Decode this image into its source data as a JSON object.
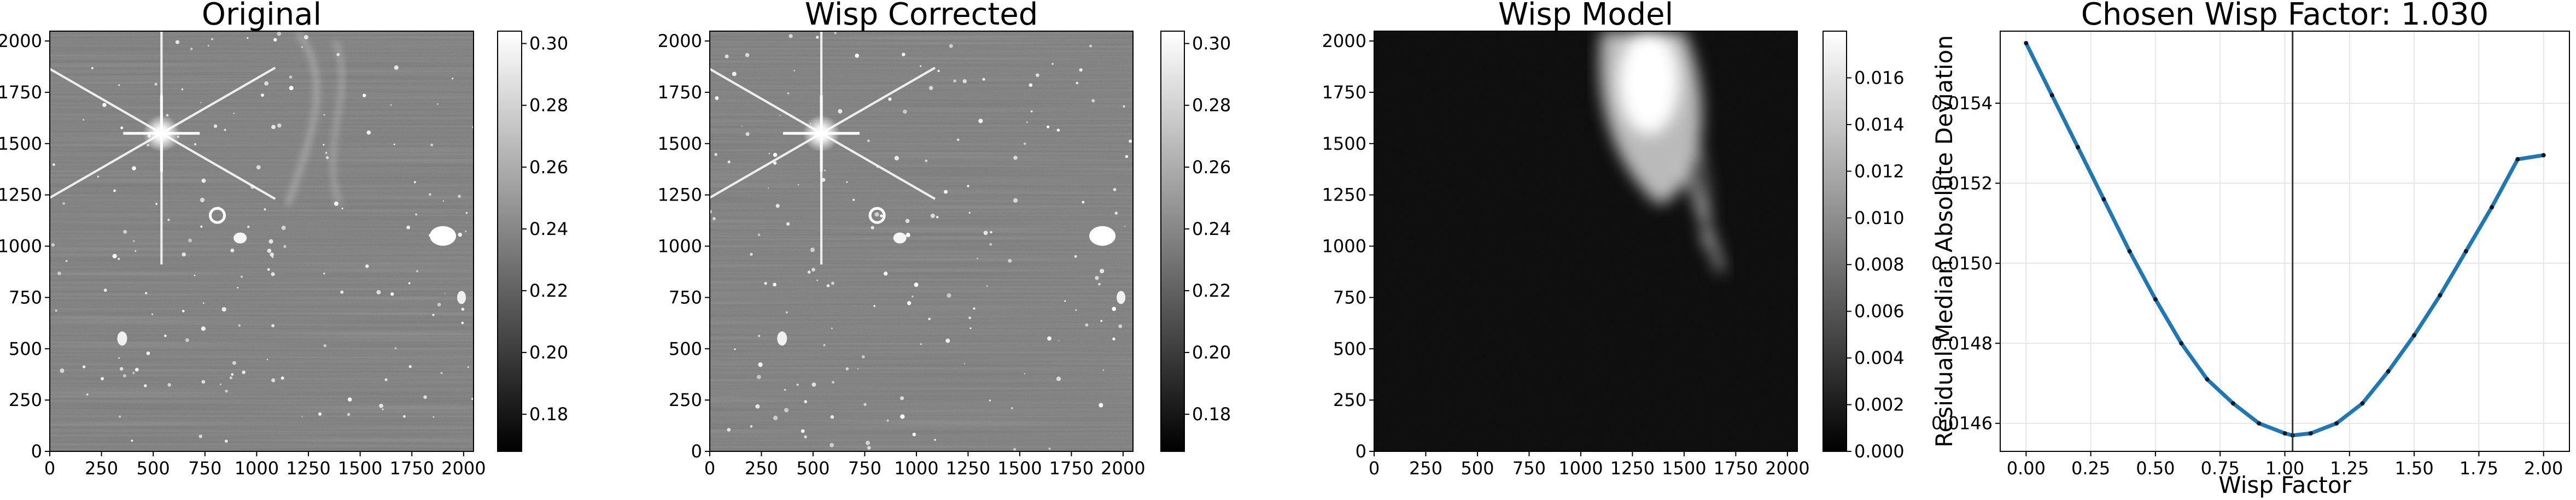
{
  "chart_data": [
    {
      "type": "heatmap",
      "title": "Original",
      "xlim": [
        0,
        2048
      ],
      "ylim": [
        0,
        2048
      ],
      "xticks": [
        "0",
        "250",
        "500",
        "750",
        "1000",
        "1250",
        "1500",
        "1750",
        "2000"
      ],
      "yticks": [
        "0",
        "250",
        "500",
        "750",
        "1000",
        "1250",
        "1500",
        "1750",
        "2000"
      ],
      "colormap": "gray",
      "colorbar": {
        "range": [
          0.168,
          0.304
        ],
        "ticks": [
          "0.18",
          "0.20",
          "0.22",
          "0.24",
          "0.26",
          "0.28",
          "0.30"
        ]
      }
    },
    {
      "type": "heatmap",
      "title": "Wisp Corrected",
      "xlim": [
        0,
        2048
      ],
      "ylim": [
        0,
        2048
      ],
      "xticks": [
        "0",
        "250",
        "500",
        "750",
        "1000",
        "1250",
        "1500",
        "1750",
        "2000"
      ],
      "yticks": [
        "0",
        "250",
        "500",
        "750",
        "1000",
        "1250",
        "1500",
        "1750",
        "2000"
      ],
      "colormap": "gray",
      "colorbar": {
        "range": [
          0.168,
          0.304
        ],
        "ticks": [
          "0.18",
          "0.20",
          "0.22",
          "0.24",
          "0.26",
          "0.28",
          "0.30"
        ]
      }
    },
    {
      "type": "heatmap",
      "title": "Wisp Model",
      "xlim": [
        0,
        2048
      ],
      "ylim": [
        0,
        2048
      ],
      "xticks": [
        "0",
        "250",
        "500",
        "750",
        "1000",
        "1250",
        "1500",
        "1750",
        "2000"
      ],
      "yticks": [
        "0",
        "250",
        "500",
        "750",
        "1000",
        "1250",
        "1500",
        "1750",
        "2000"
      ],
      "colormap": "gray",
      "colorbar": {
        "range": [
          0,
          0.018
        ],
        "ticks": [
          "0.000",
          "0.002",
          "0.004",
          "0.006",
          "0.008",
          "0.010",
          "0.012",
          "0.014",
          "0.016"
        ]
      }
    },
    {
      "type": "line",
      "title": "Chosen Wisp Factor: 1.030",
      "xlabel": "Wisp Factor",
      "ylabel": "Residual Median Absolute Deviation",
      "xlim": [
        -0.1,
        2.1
      ],
      "ylim": [
        0.01453,
        0.01558
      ],
      "xticks": [
        "0.00",
        "0.25",
        "0.50",
        "0.75",
        "1.00",
        "1.25",
        "1.50",
        "1.75",
        "2.00"
      ],
      "yticks": [
        "0.0146",
        "0.0148",
        "0.0150",
        "0.0152",
        "0.0154"
      ],
      "grid": true,
      "vline_x": 1.03,
      "series": [
        {
          "color": "#1f77b4",
          "x": [
            0.0,
            0.1,
            0.2,
            0.3,
            0.4,
            0.5,
            0.6,
            0.7,
            0.8,
            0.9,
            1.0,
            1.03,
            1.1,
            1.2,
            1.3,
            1.4,
            1.5,
            1.6,
            1.7,
            1.8,
            1.9,
            2.0
          ],
          "values": [
            0.01555,
            0.01542,
            0.01529,
            0.01516,
            0.01503,
            0.01491,
            0.0148,
            0.01471,
            0.01465,
            0.0146,
            0.014575,
            0.01457,
            0.014575,
            0.0146,
            0.01465,
            0.01473,
            0.01482,
            0.01492,
            0.01503,
            0.01514,
            0.01526,
            0.01527
          ]
        }
      ]
    }
  ]
}
